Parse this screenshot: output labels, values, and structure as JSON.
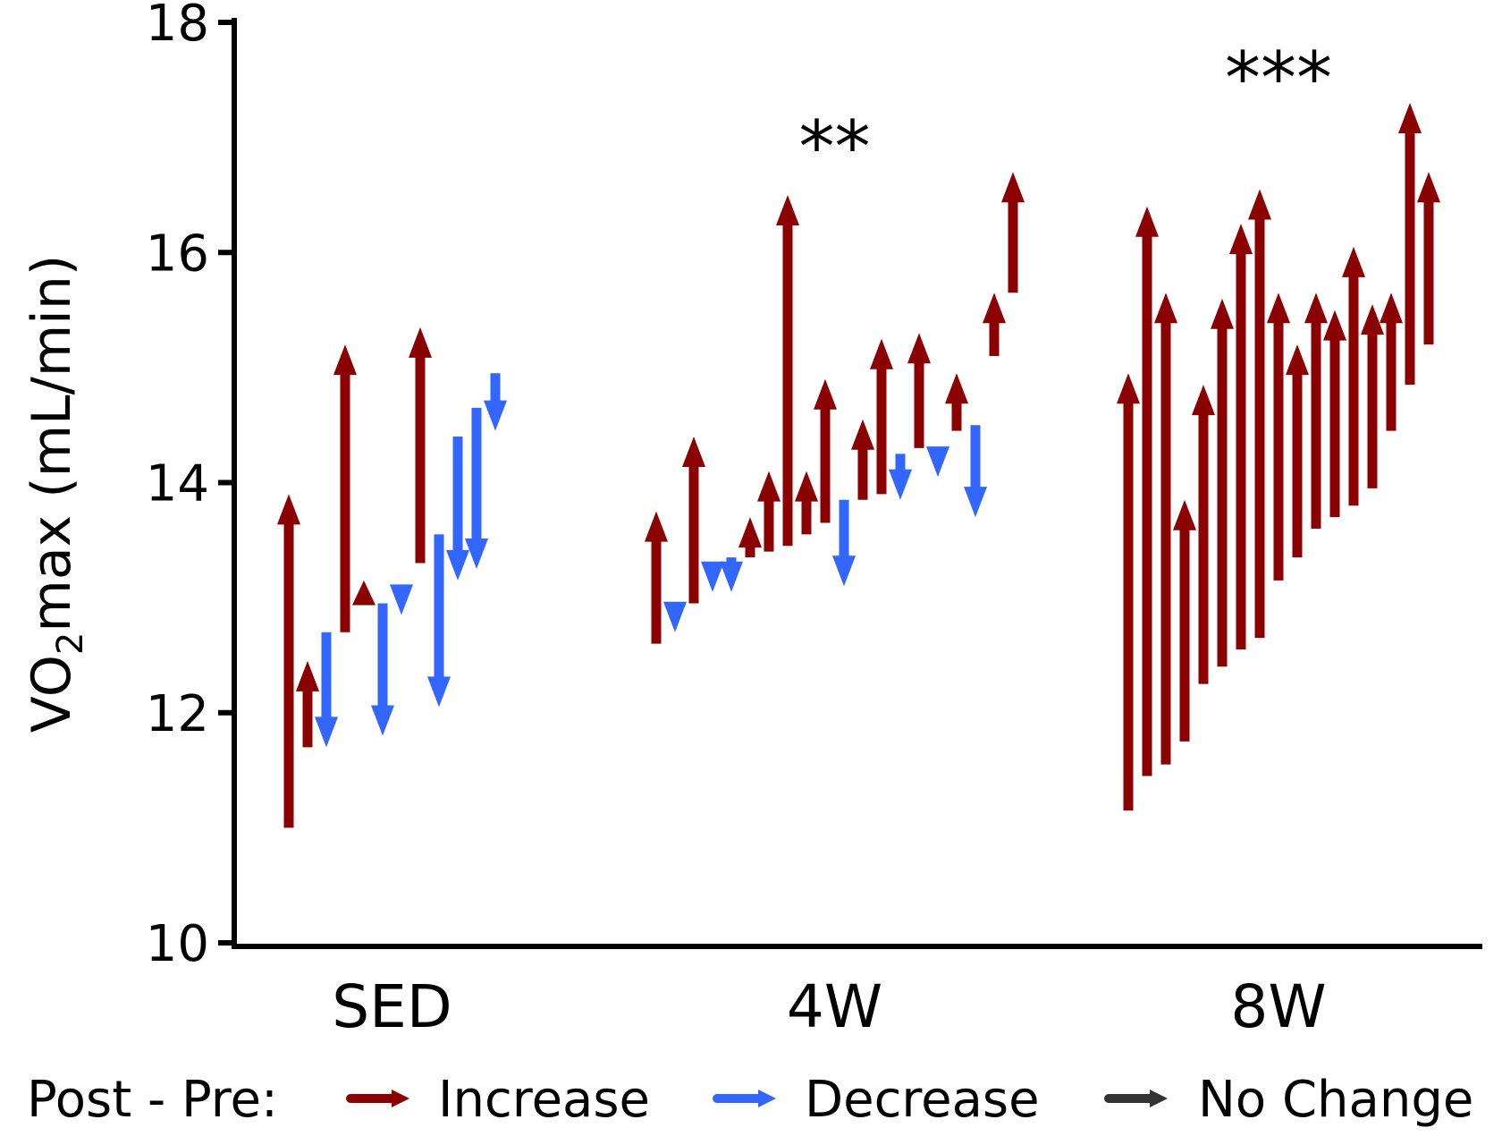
{
  "chart_data": {
    "type": "arrow",
    "title": "",
    "xlabel": "",
    "ylabel": "VO2max (mL/min)",
    "ylabel_main": "VO",
    "ylabel_sub": "2",
    "ylabel_rest": "max (mL/min)",
    "ylim": [
      10,
      18
    ],
    "yticks": [
      10,
      12,
      14,
      16,
      18
    ],
    "categories": [
      "SED",
      "4W",
      "8W"
    ],
    "significance": [
      "",
      "**",
      "***"
    ],
    "legend": {
      "title": "Post - Pre:",
      "position": "bottom",
      "items": [
        {
          "label": "Increase",
          "color": "#8b0000"
        },
        {
          "label": "Decrease",
          "color": "#3366ff"
        },
        {
          "label": "No Change",
          "color": "#333333"
        }
      ]
    },
    "groups": [
      {
        "category": "SED",
        "pairs": [
          {
            "pre": 11.0,
            "post": 13.9
          },
          {
            "pre": 11.7,
            "post": 12.45
          },
          {
            "pre": 12.7,
            "post": 11.7
          },
          {
            "pre": 12.7,
            "post": 15.2
          },
          {
            "pre": 12.95,
            "post": 13.15
          },
          {
            "pre": 12.95,
            "post": 11.8
          },
          {
            "pre": 13.1,
            "post": 12.85
          },
          {
            "pre": 13.3,
            "post": 15.35
          },
          {
            "pre": 13.55,
            "post": 12.05
          },
          {
            "pre": 14.4,
            "post": 13.15
          },
          {
            "pre": 14.65,
            "post": 13.25
          },
          {
            "pre": 14.95,
            "post": 14.45
          }
        ]
      },
      {
        "category": "4W",
        "pairs": [
          {
            "pre": 12.6,
            "post": 13.75
          },
          {
            "pre": 12.95,
            "post": 12.7
          },
          {
            "pre": 12.95,
            "post": 14.4
          },
          {
            "pre": 13.3,
            "post": 13.05
          },
          {
            "pre": 13.35,
            "post": 13.05
          },
          {
            "pre": 13.35,
            "post": 13.7
          },
          {
            "pre": 13.4,
            "post": 14.1
          },
          {
            "pre": 13.45,
            "post": 16.5
          },
          {
            "pre": 13.55,
            "post": 14.1
          },
          {
            "pre": 13.65,
            "post": 14.9
          },
          {
            "pre": 13.85,
            "post": 13.1
          },
          {
            "pre": 13.85,
            "post": 14.55
          },
          {
            "pre": 13.9,
            "post": 15.25
          },
          {
            "pre": 14.25,
            "post": 13.85
          },
          {
            "pre": 14.3,
            "post": 15.3
          },
          {
            "pre": 14.3,
            "post": 14.05
          },
          {
            "pre": 14.45,
            "post": 14.95
          },
          {
            "pre": 14.5,
            "post": 13.7
          },
          {
            "pre": 15.1,
            "post": 15.65
          },
          {
            "pre": 15.65,
            "post": 16.7
          }
        ]
      },
      {
        "category": "8W",
        "pairs": [
          {
            "pre": 11.15,
            "post": 14.95
          },
          {
            "pre": 11.45,
            "post": 16.4
          },
          {
            "pre": 11.55,
            "post": 15.65
          },
          {
            "pre": 11.75,
            "post": 13.85
          },
          {
            "pre": 12.25,
            "post": 14.85
          },
          {
            "pre": 12.4,
            "post": 15.6
          },
          {
            "pre": 12.55,
            "post": 16.25
          },
          {
            "pre": 12.65,
            "post": 16.55
          },
          {
            "pre": 13.15,
            "post": 15.65
          },
          {
            "pre": 13.35,
            "post": 15.2
          },
          {
            "pre": 13.6,
            "post": 15.65
          },
          {
            "pre": 13.7,
            "post": 15.5
          },
          {
            "pre": 13.8,
            "post": 16.05
          },
          {
            "pre": 13.95,
            "post": 15.55
          },
          {
            "pre": 14.45,
            "post": 15.65
          },
          {
            "pre": 14.85,
            "post": 17.3
          },
          {
            "pre": 15.2,
            "post": 16.7
          }
        ]
      }
    ]
  }
}
